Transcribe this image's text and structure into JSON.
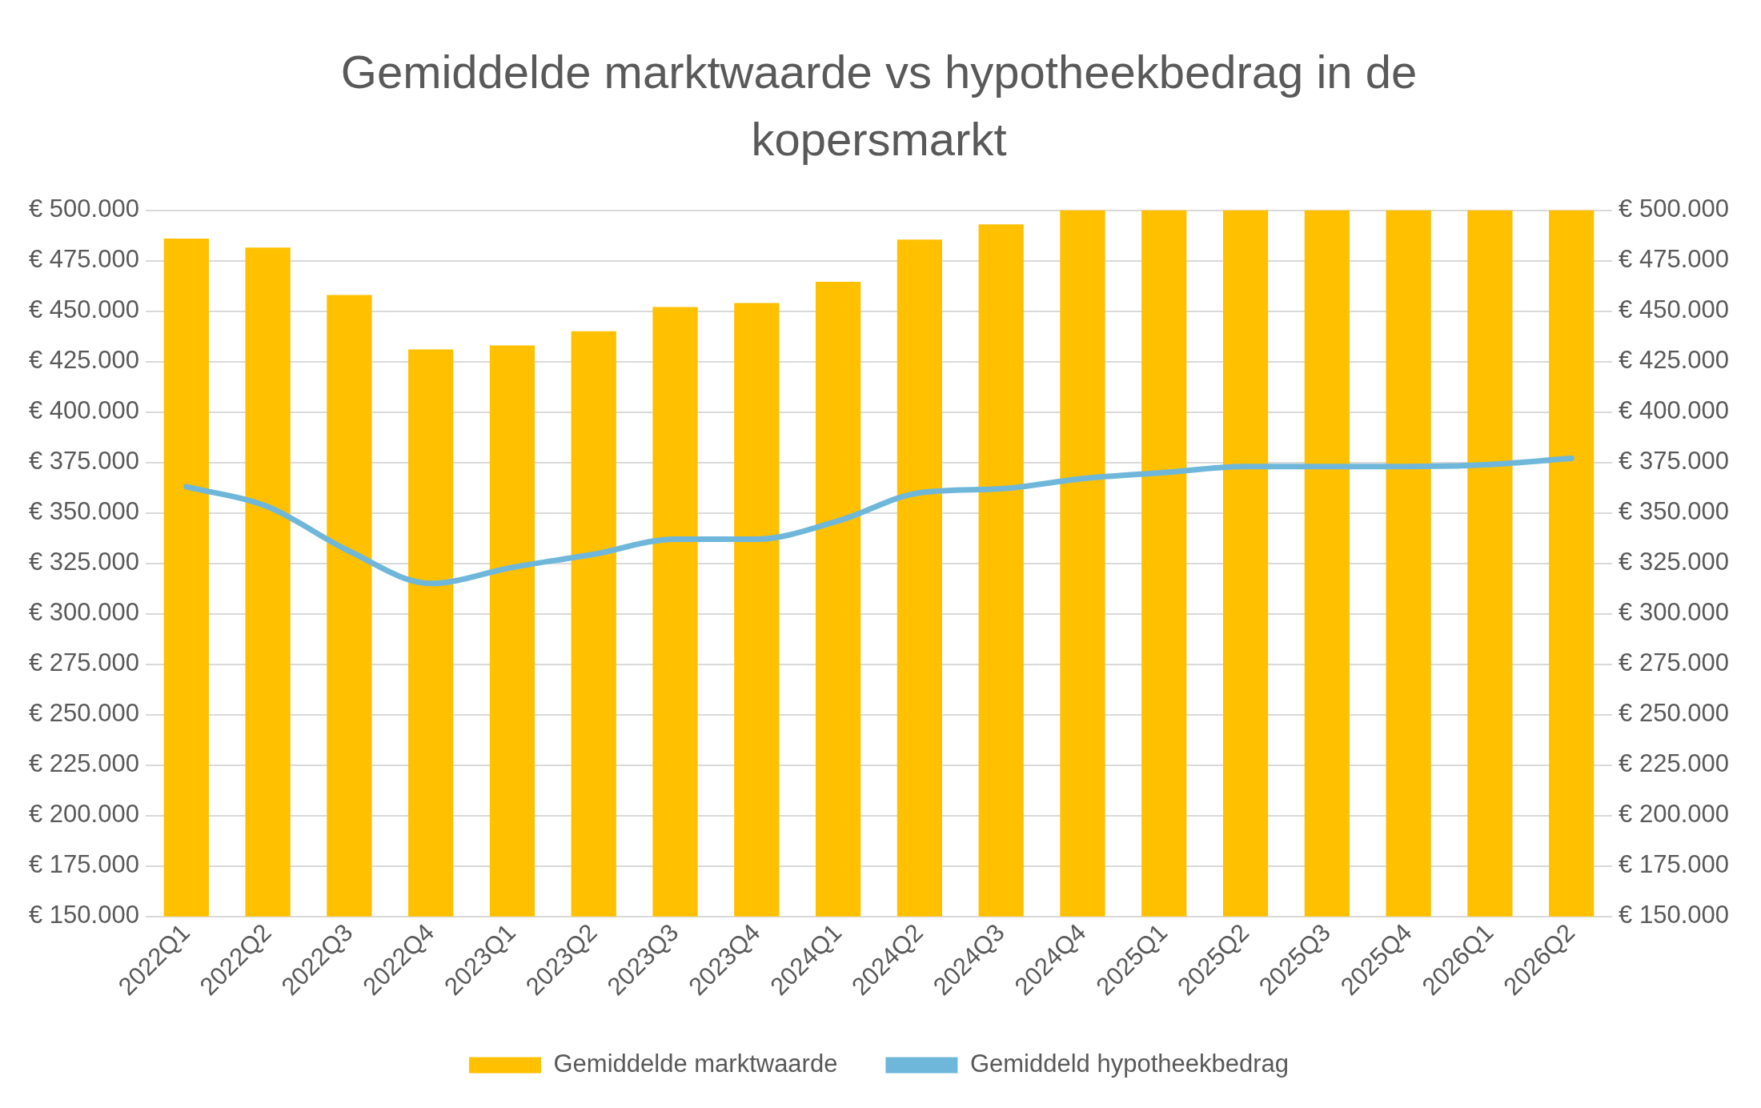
{
  "chart_data": {
    "type": "bar",
    "title": "Gemiddelde marktwaarde vs hypotheekbedrag in de kopersmarkt",
    "categories": [
      "2022Q1",
      "2022Q2",
      "2022Q3",
      "2022Q4",
      "2023Q1",
      "2023Q2",
      "2023Q3",
      "2023Q4",
      "2024Q1",
      "2024Q2",
      "2024Q3",
      "2024Q4",
      "2025Q1",
      "2025Q2",
      "2025Q3",
      "2025Q4",
      "2026Q1",
      "2026Q2"
    ],
    "series": [
      {
        "name": "Gemiddelde marktwaarde",
        "color": "#ffc000",
        "values": [
          486000,
          481500,
          458000,
          431000,
          433000,
          440000,
          452000,
          454000,
          464500,
          485500,
          493000,
          500000,
          500000,
          500000,
          500000,
          500000,
          500000,
          500000
        ]
      },
      {
        "name": "Gemiddeld hypotheekbedrag",
        "type": "line",
        "axis": "y2",
        "color": "#6fb7da",
        "values": [
          363000,
          353000,
          331000,
          315000,
          323000,
          329500,
          337000,
          337000,
          346000,
          360000,
          362000,
          367000,
          370000,
          373000,
          373000,
          373000,
          374000,
          377000
        ]
      }
    ],
    "ylim": [
      150000,
      500000
    ],
    "yticks": [
      {
        "value": 150000,
        "label": "€ 150.000"
      },
      {
        "value": 175000,
        "label": "€ 175.000"
      },
      {
        "value": 200000,
        "label": "€ 200.000"
      },
      {
        "value": 225000,
        "label": "€ 225.000"
      },
      {
        "value": 250000,
        "label": "€ 250.000"
      },
      {
        "value": 275000,
        "label": "€ 275.000"
      },
      {
        "value": 300000,
        "label": "€ 300.000"
      },
      {
        "value": 325000,
        "label": "€ 325.000"
      },
      {
        "value": 350000,
        "label": "€ 350.000"
      },
      {
        "value": 375000,
        "label": "€ 375.000"
      },
      {
        "value": 400000,
        "label": "€ 400.000"
      },
      {
        "value": 425000,
        "label": "€ 425.000"
      },
      {
        "value": 450000,
        "label": "€ 450.000"
      },
      {
        "value": 475000,
        "label": "€ 475.000"
      },
      {
        "value": 500000,
        "label": "€ 500.000"
      }
    ],
    "y2lim": [
      150000,
      500000
    ],
    "y2ticks": [
      {
        "value": 150000,
        "label": "€ 150.000"
      },
      {
        "value": 175000,
        "label": "€ 175.000"
      },
      {
        "value": 200000,
        "label": "€ 200.000"
      },
      {
        "value": 225000,
        "label": "€ 225.000"
      },
      {
        "value": 250000,
        "label": "€ 250.000"
      },
      {
        "value": 275000,
        "label": "€ 275.000"
      },
      {
        "value": 300000,
        "label": "€ 300.000"
      },
      {
        "value": 325000,
        "label": "€ 325.000"
      },
      {
        "value": 350000,
        "label": "€ 350.000"
      },
      {
        "value": 375000,
        "label": "€ 375.000"
      },
      {
        "value": 400000,
        "label": "€ 400.000"
      },
      {
        "value": 425000,
        "label": "€ 425.000"
      },
      {
        "value": 450000,
        "label": "€ 450.000"
      },
      {
        "value": 475000,
        "label": "€ 475.000"
      },
      {
        "value": 500000,
        "label": "€ 500.000"
      }
    ],
    "grid": "y",
    "legend": "bottom",
    "marker": "none",
    "line_style": "solid"
  }
}
